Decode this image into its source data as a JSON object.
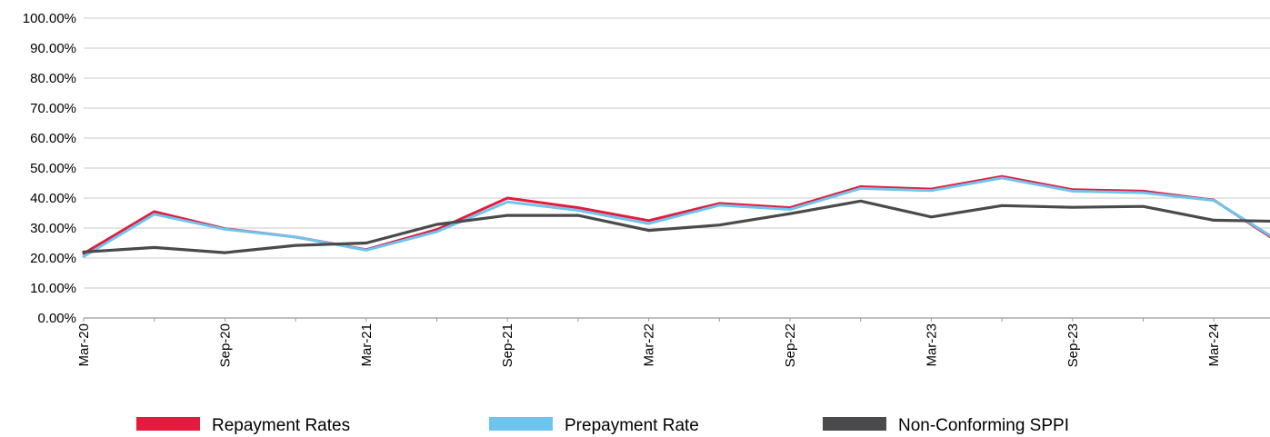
{
  "chart_data": {
    "type": "line",
    "title": "",
    "xlabel": "",
    "ylabel": "",
    "ylim": [
      0,
      100
    ],
    "yticks": [
      0,
      10,
      20,
      30,
      40,
      50,
      60,
      70,
      80,
      90,
      100
    ],
    "ytick_labels": [
      "0.00%",
      "10.00%",
      "20.00%",
      "30.00%",
      "40.00%",
      "50.00%",
      "60.00%",
      "70.00%",
      "80.00%",
      "90.00%",
      "100.00%"
    ],
    "x": [
      "2020-03",
      "2020-06",
      "2020-09",
      "2020-12",
      "2021-03",
      "2021-06",
      "2021-09",
      "2021-12",
      "2022-03",
      "2022-06",
      "2022-09",
      "2022-12",
      "2023-03",
      "2023-06",
      "2023-09",
      "2023-12",
      "2024-03",
      "2024-06"
    ],
    "x_tick_labels": [
      "Mar-20",
      "",
      "Sep-20",
      "",
      "Mar-21",
      "",
      "Sep-21",
      "",
      "Mar-22",
      "",
      "Sep-22",
      "",
      "Mar-23",
      "",
      "Sep-23",
      "",
      "Mar-24",
      ""
    ],
    "grid": true,
    "legend_position": "bottom",
    "series": [
      {
        "name": "Repayment Rates",
        "color": "#E31B3E",
        "values": [
          21.5,
          35.5,
          29.8,
          27.0,
          22.8,
          29.5,
          40.0,
          36.8,
          32.5,
          38.2,
          36.8,
          43.8,
          43.0,
          47.2,
          42.8,
          42.3,
          39.3,
          24.0
        ]
      },
      {
        "name": "Prepayment Rate",
        "color": "#6EC4EC",
        "values": [
          20.5,
          34.6,
          29.6,
          27.0,
          22.6,
          28.8,
          38.7,
          35.9,
          31.5,
          37.6,
          36.2,
          43.2,
          42.5,
          46.7,
          42.3,
          41.8,
          39.2,
          24.5
        ]
      },
      {
        "name": "Non-Conforming SPPI",
        "color": "#4A4A4C",
        "values": [
          22.0,
          23.5,
          21.8,
          24.2,
          25.0,
          31.2,
          34.2,
          34.2,
          29.2,
          31.0,
          34.8,
          39.0,
          33.7,
          37.5,
          36.9,
          37.2,
          32.6,
          32.2
        ]
      }
    ]
  },
  "colors": {
    "grid": "#C8C8C8",
    "axis": "#9A9A9A",
    "text": "#000000"
  }
}
